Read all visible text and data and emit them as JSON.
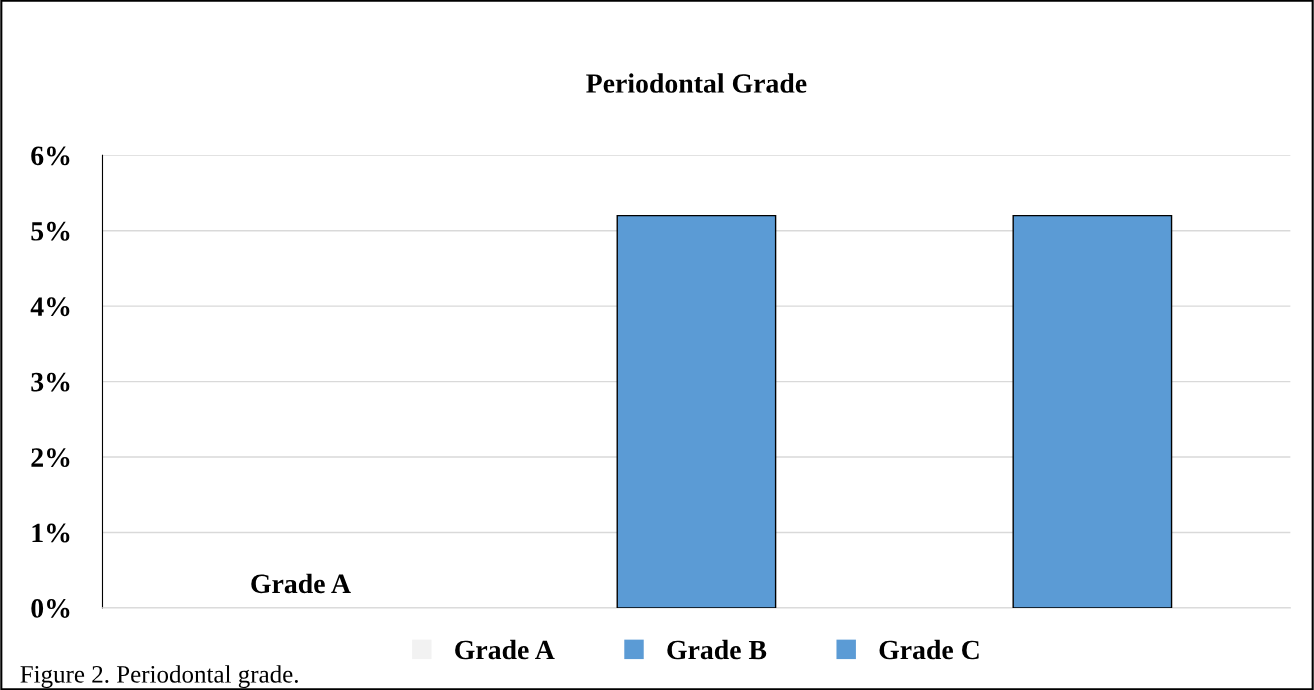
{
  "chart_data": {
    "type": "bar",
    "title": "Periodontal Grade",
    "categories": [
      "Grade A",
      null,
      null
    ],
    "series": [
      {
        "name": "Grade A",
        "color": "#f2f2f2",
        "values": [
          0,
          null,
          null
        ]
      },
      {
        "name": "Grade B",
        "color": "#5b9bd5",
        "values": [
          null,
          5.2,
          null
        ]
      },
      {
        "name": "Grade C",
        "color": "#5b9bd5",
        "values": [
          null,
          null,
          5.2
        ]
      }
    ],
    "ylim": [
      0,
      6
    ],
    "yticks": [
      {
        "value": 0,
        "label": "0%"
      },
      {
        "value": 1,
        "label": "1%"
      },
      {
        "value": 2,
        "label": "2%"
      },
      {
        "value": 3,
        "label": "3%"
      },
      {
        "value": 4,
        "label": "4%"
      },
      {
        "value": 5,
        "label": "5%"
      },
      {
        "value": 6,
        "label": "6%"
      }
    ],
    "grid": "y",
    "legend": "bottom",
    "annotations": [
      "Figure 2. Periodontal grade."
    ]
  }
}
